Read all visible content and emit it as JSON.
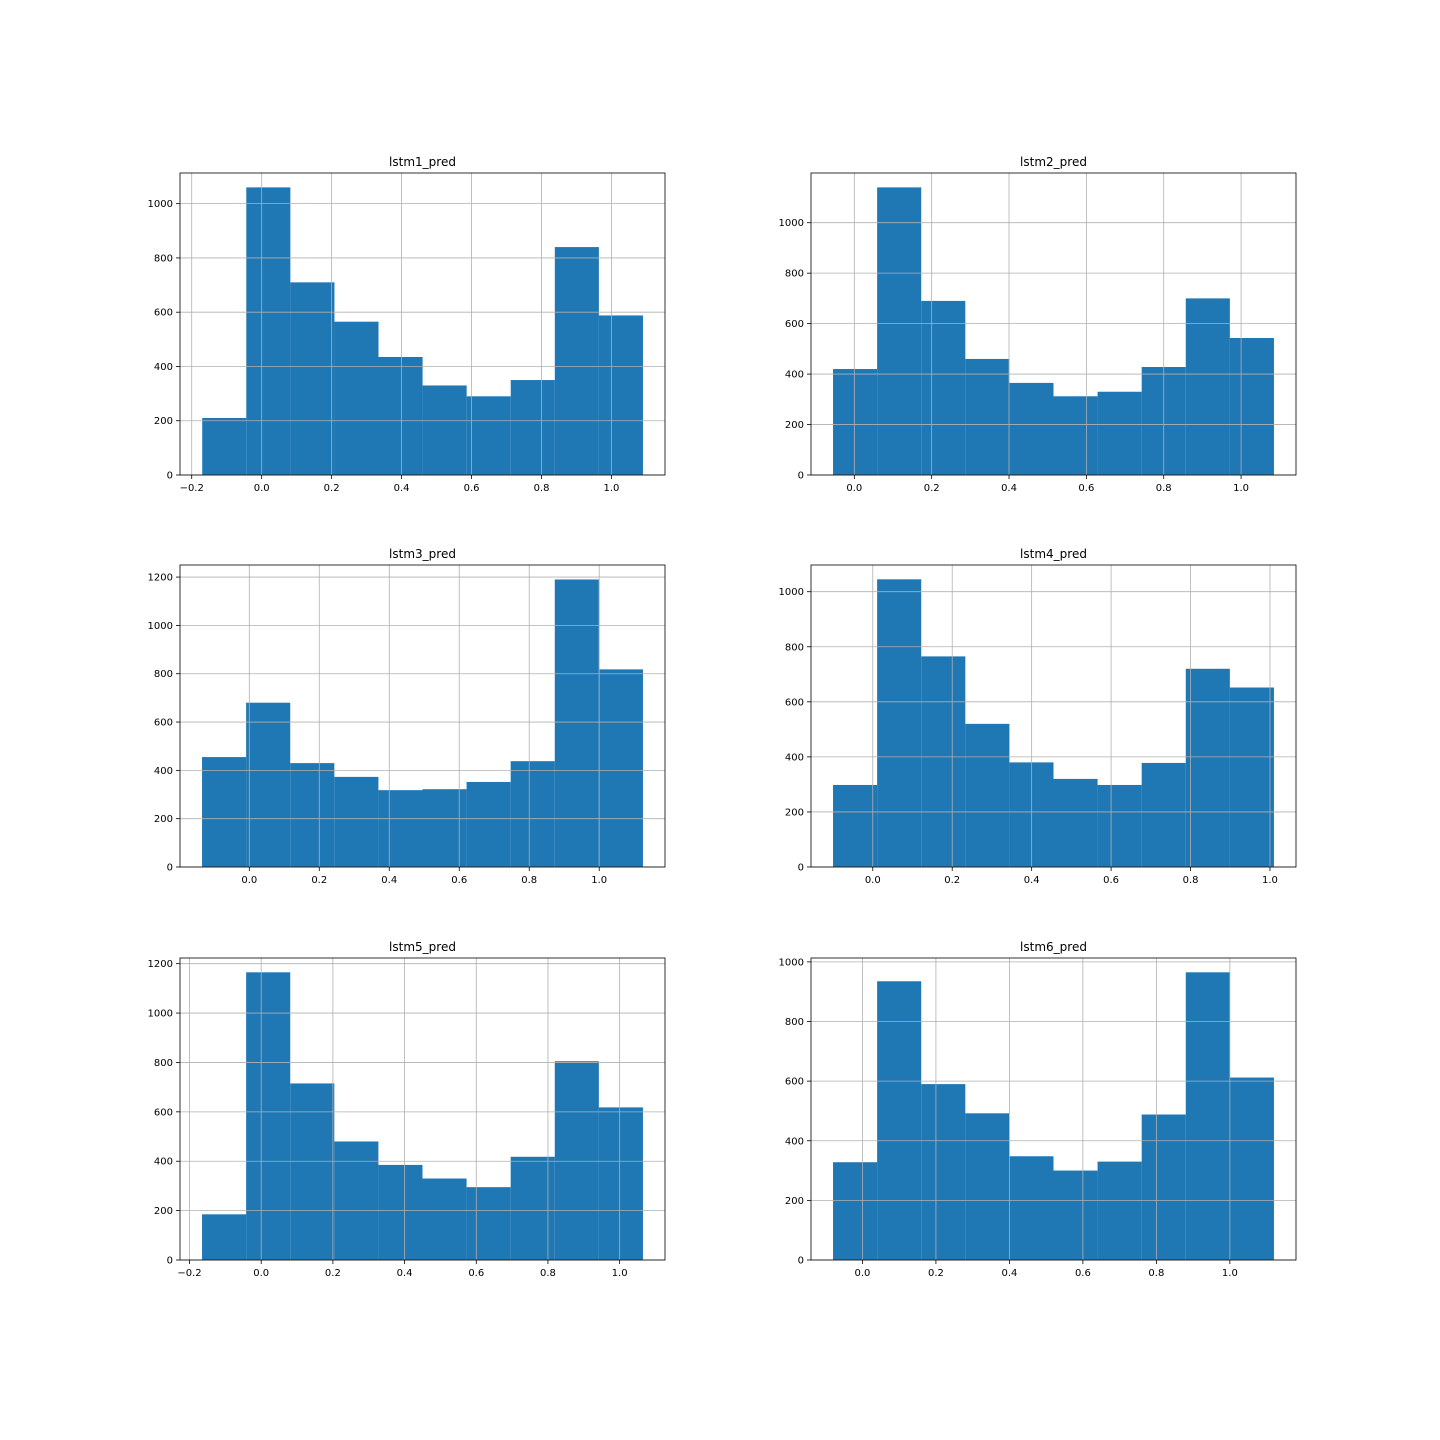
{
  "chart_data": [
    {
      "type": "bar",
      "title": "lstm1_pred",
      "bin_edges": [
        -0.17,
        -0.044,
        0.082,
        0.208,
        0.334,
        0.46,
        0.586,
        0.712,
        0.838,
        0.964,
        1.09
      ],
      "values": [
        210,
        1060,
        710,
        565,
        435,
        330,
        290,
        350,
        840,
        588
      ],
      "xlim": [
        -0.2335,
        1.153
      ],
      "ylim": [
        0,
        1113
      ],
      "xticks": [
        -0.2,
        0.0,
        0.2,
        0.4,
        0.6,
        0.8,
        1.0
      ],
      "xtick_labels": [
        "−0.2",
        "0.0",
        "0.2",
        "0.4",
        "0.6",
        "0.8",
        "1.0"
      ],
      "yticks": [
        0,
        200,
        400,
        600,
        800,
        1000
      ],
      "ytick_labels": [
        "0",
        "200",
        "400",
        "600",
        "800",
        "1000"
      ],
      "grid": true,
      "color": "#1f77b4"
    },
    {
      "type": "bar",
      "title": "lstm2_pred",
      "bin_edges": [
        -0.055,
        0.059,
        0.173,
        0.287,
        0.401,
        0.515,
        0.629,
        0.743,
        0.857,
        0.971,
        1.085
      ],
      "values": [
        420,
        1140,
        690,
        460,
        365,
        312,
        330,
        428,
        700,
        543
      ],
      "xlim": [
        -0.112,
        1.142
      ],
      "ylim": [
        0,
        1197
      ],
      "xticks": [
        0.0,
        0.2,
        0.4,
        0.6,
        0.8,
        1.0
      ],
      "xtick_labels": [
        "0.0",
        "0.2",
        "0.4",
        "0.6",
        "0.8",
        "1.0"
      ],
      "yticks": [
        0,
        200,
        400,
        600,
        800,
        1000
      ],
      "ytick_labels": [
        "0",
        "200",
        "400",
        "600",
        "800",
        "1000"
      ],
      "grid": true,
      "color": "#1f77b4"
    },
    {
      "type": "bar",
      "title": "lstm3_pred",
      "bin_edges": [
        -0.135,
        -0.009,
        0.117,
        0.243,
        0.369,
        0.495,
        0.621,
        0.747,
        0.873,
        0.999,
        1.125
      ],
      "values": [
        455,
        680,
        430,
        373,
        318,
        322,
        352,
        438,
        1190,
        818
      ],
      "xlim": [
        -0.198,
        1.188
      ],
      "ylim": [
        0,
        1250
      ],
      "xticks": [
        0.0,
        0.2,
        0.4,
        0.6,
        0.8,
        1.0
      ],
      "xtick_labels": [
        "0.0",
        "0.2",
        "0.4",
        "0.6",
        "0.8",
        "1.0"
      ],
      "yticks": [
        0,
        200,
        400,
        600,
        800,
        1000,
        1200
      ],
      "ytick_labels": [
        "0",
        "200",
        "400",
        "600",
        "800",
        "1000",
        "1200"
      ],
      "grid": true,
      "color": "#1f77b4"
    },
    {
      "type": "bar",
      "title": "lstm4_pred",
      "bin_edges": [
        -0.1,
        0.011,
        0.122,
        0.233,
        0.344,
        0.455,
        0.566,
        0.677,
        0.788,
        0.899,
        1.01
      ],
      "values": [
        298,
        1045,
        765,
        520,
        380,
        320,
        298,
        378,
        720,
        652
      ],
      "xlim": [
        -0.1555,
        1.0655
      ],
      "ylim": [
        0,
        1097
      ],
      "xticks": [
        0.0,
        0.2,
        0.4,
        0.6,
        0.8,
        1.0
      ],
      "xtick_labels": [
        "0.0",
        "0.2",
        "0.4",
        "0.6",
        "0.8",
        "1.0"
      ],
      "yticks": [
        0,
        200,
        400,
        600,
        800,
        1000
      ],
      "ytick_labels": [
        "0",
        "200",
        "400",
        "600",
        "800",
        "1000"
      ],
      "grid": true,
      "color": "#1f77b4"
    },
    {
      "type": "bar",
      "title": "lstm5_pred",
      "bin_edges": [
        -0.165,
        -0.042,
        0.081,
        0.204,
        0.327,
        0.45,
        0.573,
        0.696,
        0.819,
        0.942,
        1.065
      ],
      "values": [
        185,
        1165,
        715,
        480,
        385,
        330,
        295,
        418,
        805,
        618
      ],
      "xlim": [
        -0.2265,
        1.1265
      ],
      "ylim": [
        0,
        1223
      ],
      "xticks": [
        -0.2,
        0.0,
        0.2,
        0.4,
        0.6,
        0.8,
        1.0
      ],
      "xtick_labels": [
        "−0.2",
        "0.0",
        "0.2",
        "0.4",
        "0.6",
        "0.8",
        "1.0"
      ],
      "yticks": [
        0,
        200,
        400,
        600,
        800,
        1000,
        1200
      ],
      "ytick_labels": [
        "0",
        "200",
        "400",
        "600",
        "800",
        "1000",
        "1200"
      ],
      "grid": true,
      "color": "#1f77b4"
    },
    {
      "type": "bar",
      "title": "lstm6_pred",
      "bin_edges": [
        -0.08,
        0.04,
        0.16,
        0.28,
        0.4,
        0.52,
        0.64,
        0.76,
        0.88,
        1.0,
        1.12
      ],
      "values": [
        328,
        935,
        590,
        492,
        348,
        300,
        330,
        488,
        965,
        612
      ],
      "xlim": [
        -0.14,
        1.18
      ],
      "ylim": [
        0,
        1013
      ],
      "xticks": [
        0.0,
        0.2,
        0.4,
        0.6,
        0.8,
        1.0
      ],
      "xtick_labels": [
        "0.0",
        "0.2",
        "0.4",
        "0.6",
        "0.8",
        "1.0"
      ],
      "yticks": [
        0,
        200,
        400,
        600,
        800,
        1000
      ],
      "ytick_labels": [
        "0",
        "200",
        "400",
        "600",
        "800",
        "1000"
      ],
      "grid": true,
      "color": "#1f77b4"
    }
  ]
}
